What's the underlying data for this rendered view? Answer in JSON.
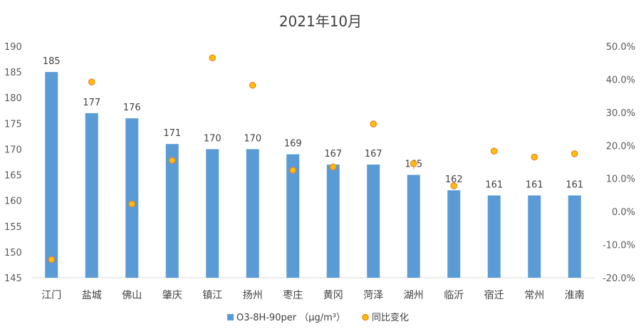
{
  "chart_data": {
    "type": "bar",
    "title": "2021年10月",
    "categories": [
      "江门",
      "盐城",
      "佛山",
      "肇庆",
      "镇江",
      "扬州",
      "枣庄",
      "黄冈",
      "菏泽",
      "湖州",
      "临沂",
      "宿迁",
      "常州",
      "淮南"
    ],
    "series": [
      {
        "name": "O3-8H-90per （μg/m³）",
        "type": "bar",
        "axis": "left",
        "color": "#5b9bd5",
        "values": [
          185,
          177,
          176,
          171,
          170,
          170,
          169,
          167,
          167,
          165,
          162,
          161,
          161,
          161
        ],
        "data_labels": [
          "185",
          "177",
          "176",
          "171",
          "170",
          "170",
          "169",
          "167",
          "167",
          "165",
          "162",
          "161",
          "161",
          "161"
        ]
      },
      {
        "name": "同比变化",
        "type": "scatter",
        "axis": "right",
        "color": "#ffc000",
        "values": [
          -14.5,
          39.2,
          2.3,
          15.5,
          46.5,
          38.2,
          12.5,
          13.5,
          26.5,
          14.5,
          7.8,
          18.3,
          16.5,
          17.5
        ]
      }
    ],
    "y_left": {
      "min": 145,
      "max": 190,
      "step": 5,
      "ticks": [
        "145",
        "150",
        "155",
        "160",
        "165",
        "170",
        "175",
        "180",
        "185",
        "190"
      ]
    },
    "y_right": {
      "min": -20,
      "max": 50,
      "step": 10,
      "ticks": [
        "-20.0%",
        "-10.0%",
        "0.0%",
        "10.0%",
        "20.0%",
        "30.0%",
        "40.0%",
        "50.0%"
      ]
    },
    "legend_position": "bottom",
    "grid": false
  }
}
